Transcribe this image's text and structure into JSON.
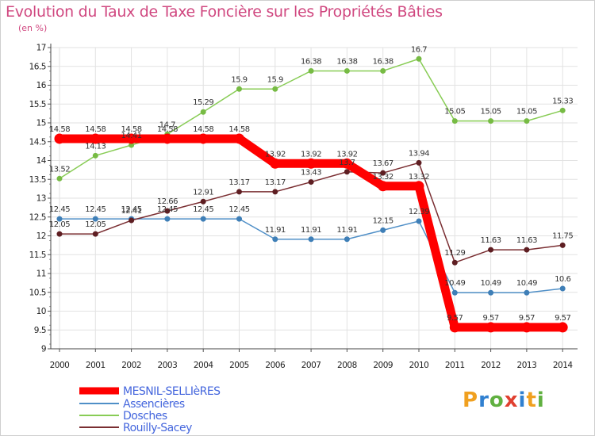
{
  "header": {
    "title": "Evolution du Taux de Taxe Foncière sur les Propriétés Bâties",
    "subtitle": "(en %)"
  },
  "logo": {
    "text": "Proxiti",
    "letters": [
      "P",
      "r",
      "o",
      "x",
      "i",
      "t",
      "i"
    ],
    "colors": [
      "#f0a020",
      "#3080d0",
      "#60b040",
      "#e04030",
      "#3080d0",
      "#f0a020",
      "#60b040"
    ]
  },
  "chart_data": {
    "type": "line",
    "title": "Evolution du Taux de Taxe Foncière sur les Propriétés Bâties",
    "ylabel": "(en %)",
    "xlabel": "",
    "categories": [
      "2000",
      "2001",
      "2002",
      "2003",
      "2004",
      "2005",
      "2006",
      "2007",
      "2008",
      "2009",
      "2010",
      "2011",
      "2012",
      "2013",
      "2014"
    ],
    "ylim": [
      9,
      17
    ],
    "yticks": [
      "9",
      "9.5",
      "10",
      "10.5",
      "11",
      "11.5",
      "12",
      "12.5",
      "13",
      "13.5",
      "14",
      "14.5",
      "15",
      "15.5",
      "16",
      "16.5",
      "17"
    ],
    "grid": true,
    "legend": "bottom-left",
    "series": [
      {
        "name": "MESNIL-SELLIèRES",
        "color": "#ff0000",
        "marker": "#cc0000",
        "emphasis": true,
        "values": [
          14.58,
          14.58,
          14.58,
          14.58,
          14.58,
          14.58,
          13.92,
          13.92,
          13.92,
          13.32,
          13.32,
          9.57,
          9.57,
          9.57,
          9.57
        ],
        "labels": [
          "14.58",
          "14.58",
          "14.58",
          "14.58",
          "14.58",
          "14.58",
          "13.92",
          "13.92",
          "13.92",
          "13.32",
          "13.32",
          "9.57",
          "9.57",
          "9.57",
          "9.57"
        ]
      },
      {
        "name": "Assencières",
        "color": "#4f8fc7",
        "marker": "#3f7fb7",
        "emphasis": false,
        "values": [
          12.45,
          12.45,
          12.45,
          12.45,
          12.45,
          12.45,
          11.91,
          11.91,
          11.91,
          12.15,
          12.39,
          10.49,
          10.49,
          10.49,
          10.6
        ],
        "labels": [
          "12.45",
          "12.45",
          "12.45",
          "12.45",
          "12.45",
          "12.45",
          "11.91",
          "11.91",
          "11.91",
          "12.15",
          "12.39",
          "10.49",
          "10.49",
          "10.49",
          "10.6"
        ]
      },
      {
        "name": "Dosches",
        "color": "#88cc55",
        "marker": "#77bb44",
        "emphasis": false,
        "values": [
          13.52,
          14.13,
          14.41,
          14.7,
          15.29,
          15.9,
          15.9,
          16.38,
          16.38,
          16.38,
          16.7,
          15.05,
          15.05,
          15.05,
          15.33
        ],
        "labels": [
          "13.52",
          "14.13",
          "14.41",
          "14.7",
          "15.29",
          "15.9",
          "15.9",
          "16.38",
          "16.38",
          "16.38",
          "16.7",
          "15.05",
          "15.05",
          "15.05",
          "15.33"
        ]
      },
      {
        "name": "Rouilly-Sacey",
        "color": "#7a2e32",
        "marker": "#5e1e22",
        "emphasis": false,
        "values": [
          12.05,
          12.05,
          12.41,
          12.66,
          12.91,
          13.17,
          13.17,
          13.43,
          13.7,
          13.67,
          13.94,
          11.29,
          11.63,
          11.63,
          11.75
        ],
        "labels": [
          "12.05",
          "12.05",
          "12.41",
          "12.66",
          "12.91",
          "13.17",
          "13.17",
          "13.43",
          "13.7",
          "13.67",
          "13.94",
          "11.29",
          "11.63",
          "11.63",
          "11.75"
        ]
      }
    ]
  }
}
